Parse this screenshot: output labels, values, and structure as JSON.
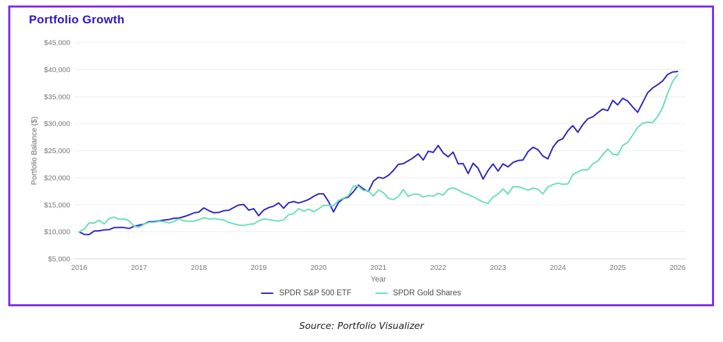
{
  "card": {
    "title": "Portfolio Growth",
    "title_color": "#2e12cf",
    "border_color": "#8130e8"
  },
  "source_note": "Source: Portfolio Visualizer",
  "chart_data": {
    "type": "line",
    "title": "Portfolio Growth",
    "xlabel": "Year",
    "ylabel": "Portfolio Balance ($)",
    "frequency": "monthly",
    "start": "2016-01",
    "end": "2026-01",
    "x_ticks": [
      "2016",
      "2017",
      "2018",
      "2019",
      "2020",
      "2021",
      "2022",
      "2023",
      "2024",
      "2025",
      "2026"
    ],
    "y_ticks": [
      {
        "label": "$5,000",
        "value": 5000
      },
      {
        "label": "$10,000",
        "value": 10000
      },
      {
        "label": "$15,000",
        "value": 15000
      },
      {
        "label": "$20,000",
        "value": 20000
      },
      {
        "label": "$25,000",
        "value": 25000
      },
      {
        "label": "$30,000",
        "value": 30000
      },
      {
        "label": "$35,000",
        "value": 35000
      },
      {
        "label": "$40,000",
        "value": 40000
      },
      {
        "label": "$45,000",
        "value": 45000
      }
    ],
    "ylim": [
      5000,
      45000
    ],
    "grid": true,
    "legend_position": "bottom",
    "colors": {
      "grid": "#ececec",
      "axis_line": "#d6d6d6",
      "axis_text": "#757575"
    },
    "series": [
      {
        "name": "SPDR S&P 500 ETF",
        "data_name": "sp500-line",
        "color": "#2b21c2",
        "values": [
          10000,
          9520,
          9510,
          10150,
          10190,
          10370,
          10410,
          10790,
          10800,
          10800,
          10620,
          11010,
          11230,
          11430,
          11890,
          11900,
          12020,
          12190,
          12270,
          12520,
          12560,
          12810,
          13110,
          13510,
          13660,
          14430,
          13910,
          13530,
          13580,
          13910,
          13990,
          14510,
          14970,
          15060,
          14020,
          14280,
          12990,
          14030,
          14490,
          14750,
          15350,
          14370,
          15380,
          15600,
          15340,
          15630,
          15970,
          16550,
          17030,
          17020,
          15620,
          13680,
          15430,
          16170,
          16460,
          17420,
          18650,
          17940,
          17460,
          19380,
          20090,
          19890,
          20440,
          21330,
          22470,
          22610,
          23140,
          23700,
          24420,
          23280,
          24910,
          24700,
          25980,
          24600,
          23870,
          24750,
          22590,
          22630,
          20780,
          22690,
          21760,
          19750,
          21350,
          22550,
          21240,
          22570,
          22010,
          22830,
          23190,
          23290,
          24830,
          25630,
          25210,
          24010,
          23500,
          25650,
          26820,
          27250,
          28710,
          29630,
          28420,
          29840,
          30900,
          31270,
          32030,
          32710,
          32410,
          34310,
          33480,
          34700,
          34200,
          33100,
          32100,
          33900,
          35700,
          36600,
          37200,
          37900,
          39100,
          39550,
          39650
        ]
      },
      {
        "name": "SPDR Gold Shares",
        "data_name": "gold-line",
        "color": "#67debc",
        "values": [
          10000,
          10530,
          11670,
          11610,
          12180,
          11450,
          12460,
          12730,
          12340,
          12400,
          12030,
          11060,
          10860,
          11410,
          11760,
          11750,
          11940,
          11910,
          11650,
          11920,
          12410,
          12020,
          11940,
          11980,
          12240,
          12630,
          12380,
          12440,
          12340,
          12180,
          11760,
          11490,
          11270,
          11170,
          11390,
          11460,
          12020,
          12380,
          12290,
          12090,
          12010,
          12210,
          13190,
          13360,
          14280,
          13820,
          14190,
          13740,
          14230,
          14900,
          14870,
          14800,
          15820,
          16230,
          16680,
          18500,
          18430,
          17660,
          17590,
          16640,
          17730,
          17250,
          16200,
          15960,
          16530,
          17810,
          16560,
          16970,
          16970,
          16440,
          16690,
          16610,
          17130,
          16820,
          17860,
          18130,
          17750,
          17200,
          16930,
          16490,
          15980,
          15510,
          15250,
          16470,
          16990,
          17950,
          17000,
          18330,
          18340,
          18080,
          17690,
          18110,
          17880,
          17040,
          18280,
          18750,
          19000,
          18790,
          18870,
          20580,
          21100,
          21480,
          21460,
          22570,
          23090,
          24290,
          25310,
          24380,
          24210,
          25970,
          26520,
          27900,
          29300,
          30100,
          30300,
          30200,
          31300,
          33000,
          35600,
          37800,
          39050
        ]
      }
    ]
  }
}
